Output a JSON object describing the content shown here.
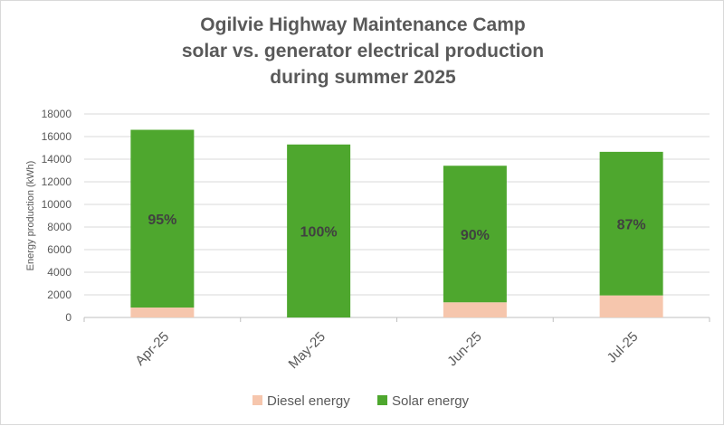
{
  "chart_data": {
    "type": "bar",
    "stacked": true,
    "title_lines": [
      "Ogilvie Highway Maintenance Camp",
      "solar vs. generator electrical production",
      "during summer 2025"
    ],
    "xlabel": "",
    "ylabel": "Energy production (kWh)",
    "ylim": [
      0,
      18000
    ],
    "yticks": [
      0,
      2000,
      4000,
      6000,
      8000,
      10000,
      12000,
      14000,
      16000,
      18000
    ],
    "grid": true,
    "legend_placement": "bottom",
    "categories": [
      "Apr-25",
      "May-25",
      "Jun-25",
      "Jul-25"
    ],
    "series": [
      {
        "name": "Diesel energy",
        "color": "#F6C6AD",
        "values": [
          880,
          0,
          1340,
          1950
        ]
      },
      {
        "name": "Solar energy",
        "color": "#4EA72E",
        "values": [
          15720,
          15300,
          12080,
          12700
        ]
      }
    ],
    "data_labels": [
      "95%",
      "100%",
      "90%",
      "87%"
    ]
  }
}
